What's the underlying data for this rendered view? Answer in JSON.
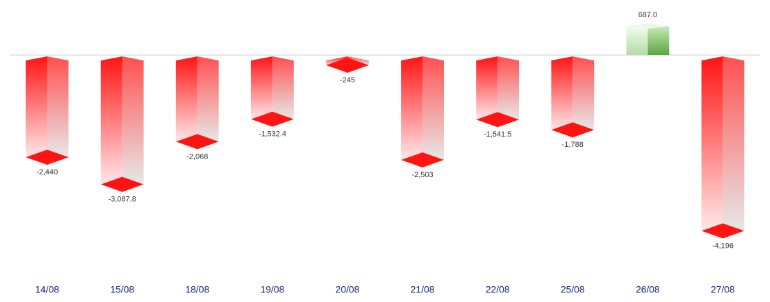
{
  "chart_data": {
    "type": "bar",
    "categories": [
      "14/08",
      "15/08",
      "18/08",
      "19/08",
      "20/08",
      "21/08",
      "22/08",
      "25/08",
      "26/08",
      "27/08"
    ],
    "values": [
      -2440,
      -3087.8,
      -2068,
      -1532.4,
      -245,
      -2503,
      -1541.5,
      -1788,
      687,
      -4196
    ],
    "value_labels": [
      "-2,440",
      "-3,087.8",
      "-2,068",
      "-1,532.4",
      "-245",
      "-2,503",
      "-1,541.5",
      "-1,788",
      "687.0",
      "-4,196"
    ],
    "color": "#ff1414",
    "positive_color": "#5aa83c",
    "ylim": [
      -5500,
      1000
    ]
  }
}
